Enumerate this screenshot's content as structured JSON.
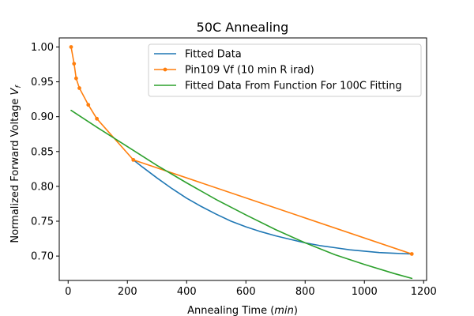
{
  "chart_data": {
    "type": "line",
    "title": "50C Annealing",
    "xlabel_prefix": "Annealing Time (",
    "xlabel_italic": "min",
    "xlabel_suffix": ")",
    "ylabel_prefix": "Normalized Forward Voltage ",
    "ylabel_italic": "V",
    "ylabel_sub": "f",
    "xlim": [
      -30,
      1210
    ],
    "ylim": [
      0.665,
      1.013
    ],
    "xticks": [
      0,
      200,
      400,
      600,
      800,
      1000,
      1200
    ],
    "xtick_labels": [
      "0",
      "200",
      "400",
      "600",
      "800",
      "1000",
      "1200"
    ],
    "yticks": [
      0.7,
      0.75,
      0.8,
      0.85,
      0.9,
      0.95,
      1.0
    ],
    "ytick_labels": [
      "0.70",
      "0.75",
      "0.80",
      "0.85",
      "0.90",
      "0.95",
      "1.00"
    ],
    "legend_position": "top-right",
    "series": [
      {
        "name": "Fitted Data",
        "color": "#1f77b4",
        "marker": false,
        "x": [
          220,
          250,
          300,
          350,
          400,
          450,
          500,
          550,
          600,
          650,
          700,
          750,
          800,
          850,
          900,
          950,
          1000,
          1050,
          1100,
          1160
        ],
        "y": [
          0.838,
          0.828,
          0.812,
          0.797,
          0.783,
          0.771,
          0.76,
          0.75,
          0.742,
          0.735,
          0.729,
          0.724,
          0.719,
          0.715,
          0.712,
          0.709,
          0.707,
          0.705,
          0.704,
          0.703
        ]
      },
      {
        "name": "Pin109 Vf (10 min R irad)",
        "color": "#ff7f0e",
        "marker": true,
        "x": [
          10,
          20,
          27,
          38,
          68,
          97,
          220,
          1160
        ],
        "y": [
          1.0,
          0.976,
          0.955,
          0.941,
          0.917,
          0.897,
          0.838,
          0.703
        ]
      },
      {
        "name": "Fitted Data From Function For 100C Fitting",
        "color": "#2ca02c",
        "marker": false,
        "x": [
          10,
          100,
          200,
          300,
          400,
          500,
          600,
          700,
          800,
          900,
          1000,
          1100,
          1160
        ],
        "y": [
          0.909,
          0.884,
          0.857,
          0.83,
          0.805,
          0.781,
          0.759,
          0.738,
          0.719,
          0.702,
          0.688,
          0.675,
          0.668
        ]
      }
    ]
  }
}
